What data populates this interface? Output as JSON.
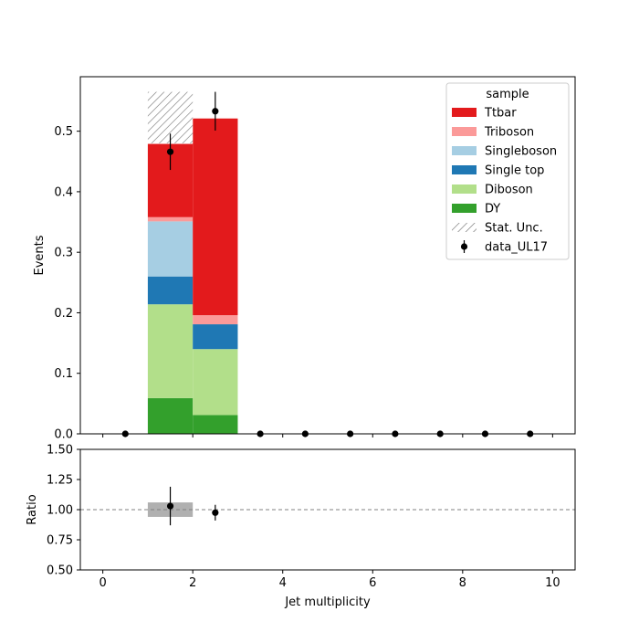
{
  "chart_data": [
    {
      "type": "bar",
      "stacked": true,
      "xlabel": "",
      "ylabel": "Events",
      "xlim": [
        -0.5,
        10.5
      ],
      "ylim": [
        0.0,
        0.59
      ],
      "xticks": [
        0,
        2,
        4,
        6,
        8,
        10
      ],
      "yticks": [
        0.0,
        0.1,
        0.2,
        0.3,
        0.4,
        0.5
      ],
      "ytick_labels": [
        "0.0",
        "0.1",
        "0.2",
        "0.3",
        "0.4",
        "0.5"
      ],
      "bin_edges": [
        1,
        2,
        3
      ],
      "series": [
        {
          "name": "DY",
          "color": "#33a02c",
          "values": [
            0.059,
            0.031
          ]
        },
        {
          "name": "Diboson",
          "color": "#b2df8a",
          "values": [
            0.155,
            0.109
          ]
        },
        {
          "name": "Single top",
          "color": "#1f78b4",
          "values": [
            0.046,
            0.041
          ]
        },
        {
          "name": "Singleboson",
          "color": "#a6cee3",
          "values": [
            0.091,
            0.0
          ]
        },
        {
          "name": "Triboson",
          "color": "#fb9a99",
          "values": [
            0.007,
            0.015
          ]
        },
        {
          "name": "Ttbar",
          "color": "#e31a1c",
          "values": [
            0.121,
            0.325
          ]
        }
      ],
      "stat_unc": {
        "name": "Stat. Unc.",
        "bins": [
          [
            1,
            2,
            0.48,
            0.565
          ]
        ]
      },
      "data_points": {
        "name": "data_UL17",
        "color": "#000000",
        "x": [
          0.5,
          1.5,
          2.5,
          3.5,
          4.5,
          5.5,
          6.5,
          7.5,
          8.5,
          9.5
        ],
        "y": [
          0.0,
          0.466,
          0.533,
          0.0,
          0.0,
          0.0,
          0.0,
          0.0,
          0.0,
          0.0
        ],
        "yerr": [
          0.0,
          0.03,
          0.032,
          0.0,
          0.0,
          0.0,
          0.0,
          0.0,
          0.0,
          0.0
        ]
      },
      "legend": {
        "title": "sample",
        "placement": "top-right",
        "entries": [
          "Ttbar",
          "Triboson",
          "Singleboson",
          "Single top",
          "Diboson",
          "DY",
          "Stat. Unc.",
          "data_UL17"
        ]
      },
      "grid": false
    },
    {
      "type": "scatter",
      "xlabel": "Jet multiplicity",
      "ylabel": "Ratio",
      "xlim": [
        -0.5,
        10.5
      ],
      "ylim": [
        0.5,
        1.5
      ],
      "xticks": [
        0,
        2,
        4,
        6,
        8,
        10
      ],
      "xtick_labels": [
        "0",
        "2",
        "4",
        "6",
        "8",
        "10"
      ],
      "yticks": [
        0.5,
        0.75,
        1.0,
        1.25,
        1.5
      ],
      "ytick_labels": [
        "0.50",
        "0.75",
        "1.00",
        "1.25",
        "1.50"
      ],
      "reference_line": 1.0,
      "unc_band": {
        "bins": [
          [
            1,
            2,
            0.94,
            1.06
          ]
        ],
        "color": "#b0b0b0"
      },
      "x": [
        1.5,
        2.5
      ],
      "y": [
        1.03,
        0.975
      ],
      "yerr": [
        0.16,
        0.065
      ],
      "grid": false
    }
  ]
}
